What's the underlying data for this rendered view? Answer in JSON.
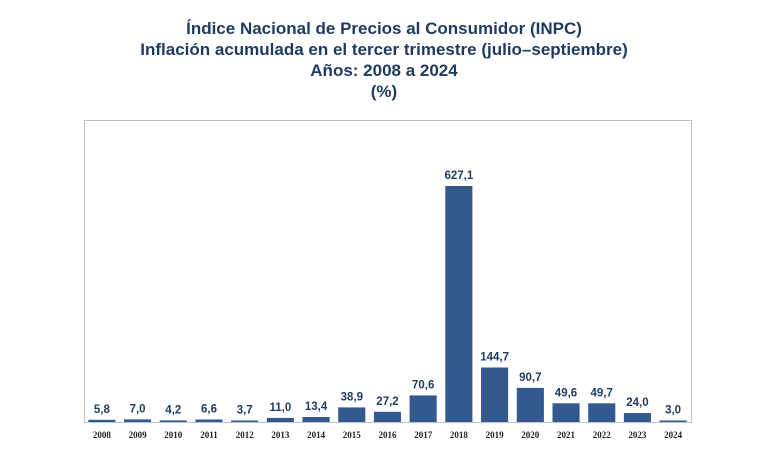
{
  "chart_data": {
    "type": "bar",
    "title_lines": [
      "Índice Nacional de Precios al Consumidor (INPC)",
      "Inflación acumulada en el tercer trimestre (julio–septiembre)",
      "Años: 2008 a 2024",
      "(%)"
    ],
    "xlabel": "",
    "ylabel": "",
    "categories": [
      "2008",
      "2009",
      "2010",
      "2011",
      "2012",
      "2013",
      "2014",
      "2015",
      "2016",
      "2017",
      "2018",
      "2019",
      "2020",
      "2021",
      "2022",
      "2023",
      "2024"
    ],
    "values": [
      5.8,
      7.0,
      4.2,
      6.6,
      3.7,
      11.0,
      13.4,
      38.9,
      27.2,
      70.6,
      627.1,
      144.7,
      90.7,
      49.6,
      49.7,
      24.0,
      3.0
    ],
    "data_labels": [
      "5,8",
      "7,0",
      "4,2",
      "6,6",
      "3,7",
      "11,0",
      "13,4",
      "38,9",
      "27,2",
      "70,6",
      "627,1",
      "144,7",
      "90,7",
      "49,6",
      "49,7",
      "24,0",
      "3,0"
    ],
    "ylim": [
      0,
      800
    ],
    "grid": false,
    "legend": "none",
    "bar_color": "#34598f",
    "title_color": "#1f3a5f",
    "label_color": "#1f3a5f"
  }
}
